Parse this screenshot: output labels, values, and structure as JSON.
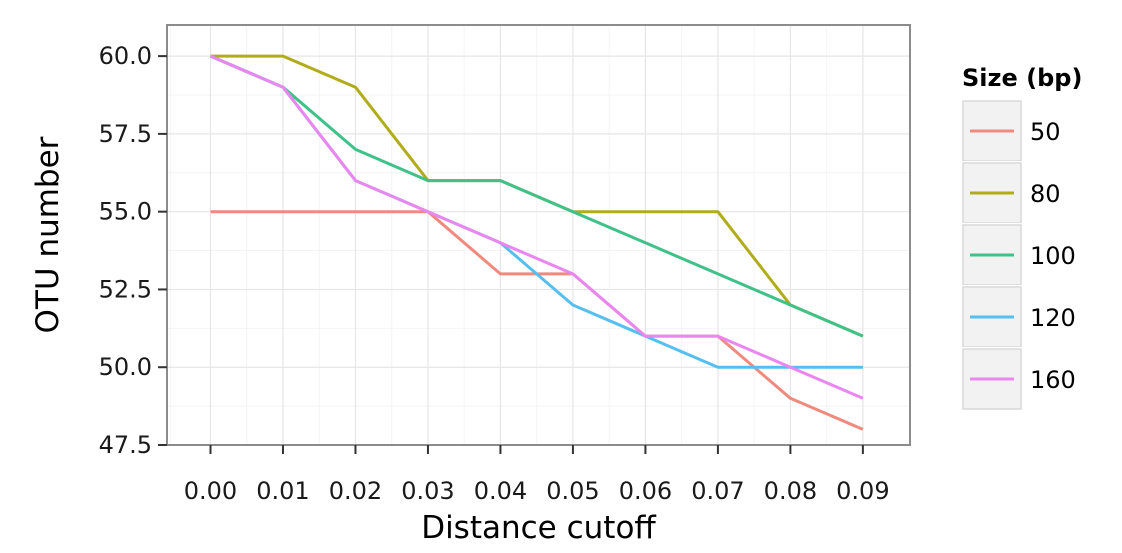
{
  "chart_data": {
    "type": "line",
    "xlabel": "Distance cutoff",
    "ylabel": "OTU number",
    "x": [
      0.0,
      0.01,
      0.02,
      0.03,
      0.04,
      0.05,
      0.06,
      0.07,
      0.08,
      0.09
    ],
    "x_tick_labels": [
      "0.00",
      "0.01",
      "0.02",
      "0.03",
      "0.04",
      "0.05",
      "0.06",
      "0.07",
      "0.08",
      "0.09"
    ],
    "y_ticks": [
      47.5,
      50.0,
      52.5,
      55.0,
      57.5,
      60.0
    ],
    "y_tick_labels": [
      "47.5",
      "50.0",
      "52.5",
      "55.0",
      "57.5",
      "60.0"
    ],
    "xlim": [
      -0.006,
      0.0965
    ],
    "ylim": [
      47.5,
      61.0
    ],
    "grid": true,
    "legend": {
      "title": "Size (bp)",
      "placement": "right"
    },
    "series": [
      {
        "name": "50",
        "color": "#F08A7E",
        "values": [
          55,
          55,
          55,
          55,
          53,
          53,
          51,
          51,
          49,
          48
        ]
      },
      {
        "name": "80",
        "color": "#B0AC1A",
        "values": [
          60,
          60,
          59,
          56,
          56,
          55,
          55,
          55,
          52,
          51
        ]
      },
      {
        "name": "100",
        "color": "#3FC189",
        "values": [
          60,
          59,
          57,
          56,
          56,
          55,
          54,
          53,
          52,
          51
        ]
      },
      {
        "name": "120",
        "color": "#56BFEF",
        "values": [
          60,
          59,
          56,
          55,
          54,
          52,
          51,
          50,
          50,
          50
        ]
      },
      {
        "name": "160",
        "color": "#EA86F0",
        "values": [
          60,
          59,
          56,
          55,
          54,
          53,
          51,
          51,
          50,
          49
        ]
      }
    ]
  }
}
